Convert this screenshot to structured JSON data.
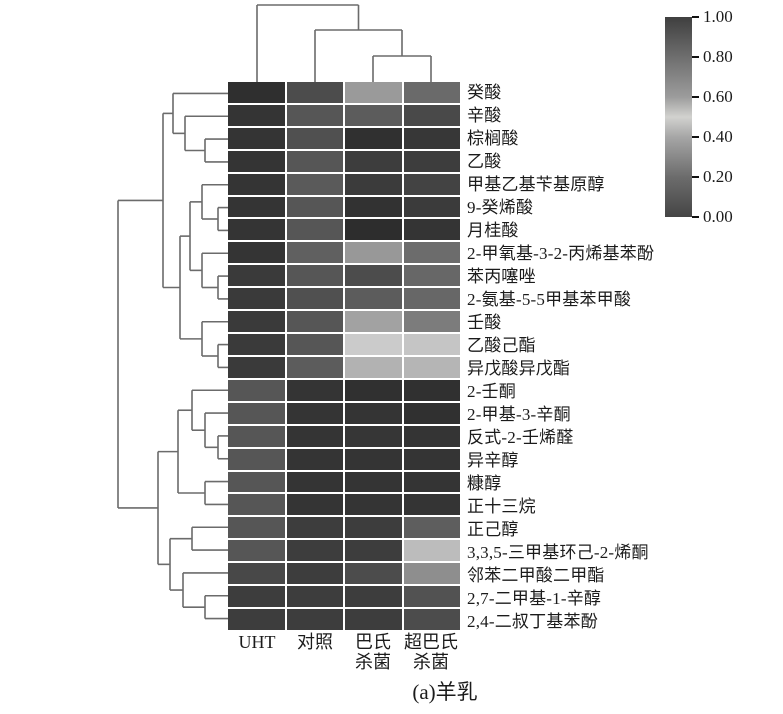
{
  "figure": {
    "caption": "(a)羊乳",
    "chart_data": {
      "type": "heatmap",
      "title": "",
      "value_range": [
        0,
        1
      ],
      "columns": [
        "UHT",
        "对照",
        "巴氏杀菌",
        "超巴氏杀菌"
      ],
      "column_label_lines": [
        [
          "UHT"
        ],
        [
          "对照"
        ],
        [
          "巴氏",
          "杀菌"
        ],
        [
          "超巴氏",
          "杀菌"
        ]
      ],
      "rows": [
        "癸酸",
        "辛酸",
        "棕榈酸",
        "乙酸",
        "甲基乙基苄基原醇",
        "9-癸烯酸",
        "月桂酸",
        "2-甲氧基-3-2-丙烯基苯酚",
        "苯丙噻唑",
        "2-氨基-5-5甲基苯甲酸",
        "壬酸",
        "乙酸己酯",
        "异戊酸异戊酯",
        "2-壬酮",
        "2-甲基-3-辛酮",
        "反式-2-壬烯醛",
        "异辛醇",
        "糠醇",
        "正十三烷",
        "正己醇",
        "3,3,5-三甲基环己-2-烯酮",
        "邻苯二甲酸二甲酯",
        "2,7-二甲基-1-辛醇",
        "2,4-二叔丁基苯酚"
      ],
      "cell_colors_gray": [
        [
          "#2f2f2f",
          "#4c4c4c",
          "#9a9a9a",
          "#6a6a6a"
        ],
        [
          "#343434",
          "#565656",
          "#5c5c5c",
          "#494949"
        ],
        [
          "#343434",
          "#505050",
          "#303030",
          "#373737"
        ],
        [
          "#343434",
          "#565656",
          "#3d3d3d",
          "#3d3d3d"
        ],
        [
          "#343434",
          "#5a5a5a",
          "#3b3b3b",
          "#434343"
        ],
        [
          "#343434",
          "#565656",
          "#323232",
          "#3b3b3b"
        ],
        [
          "#343434",
          "#565656",
          "#2d2d2d",
          "#343434"
        ],
        [
          "#343434",
          "#606060",
          "#989898",
          "#6c6c6c"
        ],
        [
          "#3a3a3a",
          "#565656",
          "#4c4c4c",
          "#676767"
        ],
        [
          "#3a3a3a",
          "#505050",
          "#5c5c5c",
          "#676767"
        ],
        [
          "#3a3a3a",
          "#565656",
          "#a2a2a2",
          "#7c7c7c"
        ],
        [
          "#3a3a3a",
          "#565656",
          "#cbcbcb",
          "#c5c5c5"
        ],
        [
          "#3a3a3a",
          "#5c5c5c",
          "#b2b2b2",
          "#b5b5b5"
        ],
        [
          "#565656",
          "#343434",
          "#303030",
          "#303030"
        ],
        [
          "#565656",
          "#343434",
          "#343434",
          "#303030"
        ],
        [
          "#565656",
          "#343434",
          "#363636",
          "#343434"
        ],
        [
          "#565656",
          "#343434",
          "#343434",
          "#343434"
        ],
        [
          "#565656",
          "#343434",
          "#343434",
          "#343434"
        ],
        [
          "#565656",
          "#343434",
          "#343434",
          "#343434"
        ],
        [
          "#565656",
          "#3d3d3d",
          "#3d3d3d",
          "#5e5e5e"
        ],
        [
          "#565656",
          "#3d3d3d",
          "#3d3d3d",
          "#bcbcbc"
        ],
        [
          "#484848",
          "#3d3d3d",
          "#4c4c4c",
          "#8e8e8e"
        ],
        [
          "#3d3d3d",
          "#3d3d3d",
          "#3d3d3d",
          "#525252"
        ],
        [
          "#3d3d3d",
          "#3d3d3d",
          "#3d3d3d",
          "#4c4c4c"
        ]
      ],
      "colorbar": {
        "position": "top-right",
        "ticks": [
          "1.00",
          "0.80",
          "0.60",
          "0.40",
          "0.20",
          "0.00"
        ],
        "gradient_top_to_bottom": [
          {
            "at": 0.0,
            "color": "#3f3f3f"
          },
          {
            "at": 0.2,
            "color": "#6e6e6e"
          },
          {
            "at": 0.4,
            "color": "#9c9c9c"
          },
          {
            "at": 0.5,
            "color": "#d2d2cf"
          },
          {
            "at": 0.6,
            "color": "#a6a6a6"
          },
          {
            "at": 0.8,
            "color": "#6c6c6c"
          },
          {
            "at": 1.0,
            "color": "#454545"
          }
        ]
      },
      "row_dendrogram": {
        "d": 118,
        "c": [
          {
            "d": 163,
            "c": [
              {
                "d": 173,
                "c": [
                  {
                    "leaf": 0
                  },
                  {
                    "d": 185,
                    "c": [
                      {
                        "leaf": 1
                      },
                      {
                        "d": 205,
                        "c": [
                          {
                            "leaf": 2
                          },
                          {
                            "leaf": 3
                          }
                        ]
                      }
                    ]
                  }
                ]
              },
              {
                "d": 180,
                "c": [
                  {
                    "d": 190,
                    "c": [
                      {
                        "d": 202,
                        "c": [
                          {
                            "leaf": 4
                          },
                          {
                            "d": 218,
                            "c": [
                              {
                                "leaf": 5
                              },
                              {
                                "leaf": 6
                              }
                            ]
                          }
                        ]
                      },
                      {
                        "d": 202,
                        "c": [
                          {
                            "leaf": 7
                          },
                          {
                            "d": 218,
                            "c": [
                              {
                                "leaf": 8
                              },
                              {
                                "leaf": 9
                              }
                            ]
                          }
                        ]
                      }
                    ]
                  },
                  {
                    "d": 202,
                    "c": [
                      {
                        "leaf": 10
                      },
                      {
                        "d": 218,
                        "c": [
                          {
                            "leaf": 11
                          },
                          {
                            "leaf": 12
                          }
                        ]
                      }
                    ]
                  }
                ]
              }
            ]
          },
          {
            "d": 158,
            "c": [
              {
                "d": 178,
                "c": [
                  {
                    "d": 192,
                    "c": [
                      {
                        "leaf": 13
                      },
                      {
                        "d": 205,
                        "c": [
                          {
                            "leaf": 14
                          },
                          {
                            "d": 218,
                            "c": [
                              {
                                "leaf": 15
                              },
                              {
                                "leaf": 16
                              }
                            ]
                          }
                        ]
                      }
                    ]
                  },
                  {
                    "d": 205,
                    "c": [
                      {
                        "leaf": 17
                      },
                      {
                        "leaf": 18
                      }
                    ]
                  }
                ]
              },
              {
                "d": 170,
                "c": [
                  {
                    "d": 192,
                    "c": [
                      {
                        "leaf": 19
                      },
                      {
                        "leaf": 20
                      }
                    ]
                  },
                  {
                    "d": 183,
                    "c": [
                      {
                        "leaf": 21
                      },
                      {
                        "d": 205,
                        "c": [
                          {
                            "leaf": 22
                          },
                          {
                            "leaf": 23
                          }
                        ]
                      }
                    ]
                  }
                ]
              }
            ]
          }
        ]
      },
      "col_dendrogram": {
        "d": 5,
        "c": [
          {
            "leaf": 0
          },
          {
            "d": 30,
            "c": [
              {
                "leaf": 1
              },
              {
                "d": 56,
                "c": [
                  {
                    "leaf": 2
                  },
                  {
                    "leaf": 3
                  }
                ]
              }
            ]
          }
        ]
      }
    }
  }
}
